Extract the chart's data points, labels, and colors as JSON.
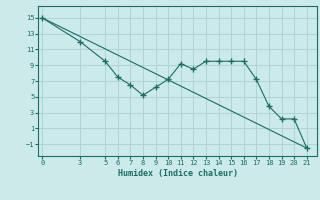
{
  "xlabel": "Humidex (Indice chaleur)",
  "bg_color": "#cceaea",
  "line_color": "#1a6e64",
  "grid_color": "#b0d4d4",
  "x_ticks": [
    0,
    3,
    5,
    6,
    7,
    8,
    9,
    10,
    11,
    12,
    13,
    14,
    15,
    16,
    17,
    18,
    19,
    20,
    21
  ],
  "y_ticks": [
    -1,
    1,
    3,
    5,
    7,
    9,
    11,
    13,
    15
  ],
  "ylim": [
    -2.5,
    16.5
  ],
  "xlim": [
    -0.3,
    21.8
  ],
  "data_x": [
    0,
    3,
    5,
    6,
    7,
    8,
    9,
    10,
    11,
    12,
    13,
    14,
    15,
    16,
    17,
    18,
    19,
    20,
    21
  ],
  "data_y": [
    15,
    12,
    9.5,
    7.5,
    6.5,
    5.2,
    6.2,
    7.2,
    9.2,
    8.5,
    9.5,
    9.5,
    9.5,
    9.5,
    7.2,
    3.8,
    2.2,
    2.2,
    -1.5
  ],
  "trend_x": [
    0,
    21
  ],
  "trend_y": [
    15,
    -1.5
  ]
}
